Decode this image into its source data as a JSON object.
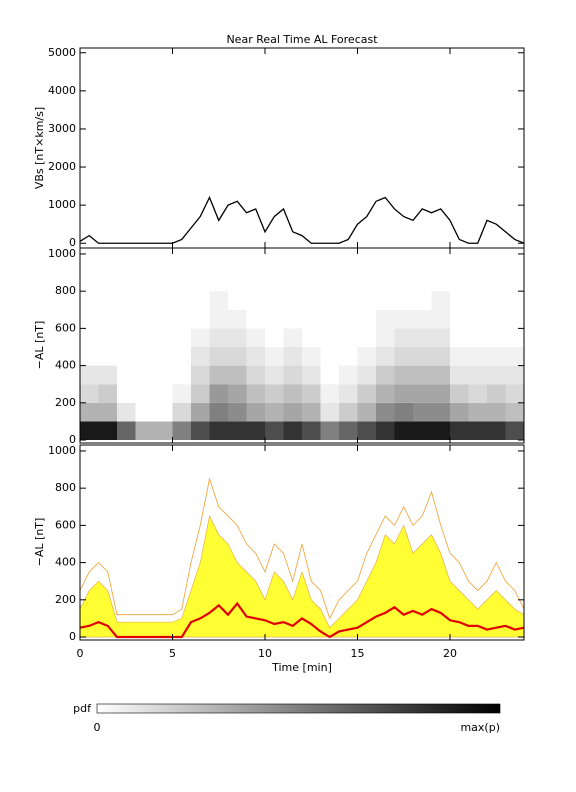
{
  "chart_data": [
    {
      "type": "line",
      "title": "Near Real Time AL Forecast",
      "ylabel": "VBs [nT×km/s]",
      "x": [
        0,
        0.5,
        1,
        1.5,
        2,
        2.5,
        3,
        3.5,
        4,
        4.5,
        5,
        5.5,
        6,
        6.5,
        7,
        7.5,
        8,
        8.5,
        9,
        9.5,
        10,
        10.5,
        11,
        11.5,
        12,
        12.5,
        13,
        13.5,
        14,
        14.5,
        15,
        15.5,
        16,
        16.5,
        17,
        17.5,
        18,
        18.5,
        19,
        19.5,
        20,
        20.5,
        21,
        21.5,
        22,
        22.5,
        23,
        23.5,
        24
      ],
      "values": [
        50,
        200,
        0,
        0,
        0,
        0,
        0,
        0,
        0,
        0,
        0,
        100,
        400,
        700,
        1200,
        600,
        1000,
        1100,
        800,
        900,
        300,
        700,
        900,
        300,
        200,
        0,
        0,
        0,
        0,
        100,
        500,
        700,
        1100,
        1200,
        900,
        700,
        600,
        900,
        800,
        900,
        600,
        100,
        0,
        0,
        600,
        500,
        300,
        100,
        0
      ],
      "color": "#000000",
      "xlim": [
        0,
        24
      ],
      "xticks": [
        0,
        5,
        10,
        15,
        20
      ],
      "show_xtick_labels": false,
      "ylim": [
        -125,
        5125
      ],
      "yticks": [
        0,
        1000,
        2000,
        3000,
        4000,
        5000
      ]
    },
    {
      "type": "heatmap",
      "ylabel": "−AL [nT]",
      "x_bins": [
        0,
        1,
        2,
        3,
        4,
        5,
        6,
        7,
        8,
        9,
        10,
        11,
        12,
        13,
        14,
        15,
        16,
        17,
        18,
        19,
        20,
        21,
        22,
        23,
        24
      ],
      "y_bins": [
        0,
        100,
        200,
        300,
        400,
        500,
        600,
        700,
        800,
        900
      ],
      "values": [
        [
          0.9,
          0.3,
          0.15,
          0.1,
          0,
          0,
          0,
          0,
          0
        ],
        [
          0.9,
          0.3,
          0.2,
          0.1,
          0,
          0,
          0,
          0,
          0
        ],
        [
          0.6,
          0.1,
          0,
          0,
          0,
          0,
          0,
          0,
          0
        ],
        [
          0.3,
          0,
          0,
          0,
          0,
          0,
          0,
          0,
          0
        ],
        [
          0.3,
          0,
          0,
          0,
          0,
          0,
          0,
          0,
          0
        ],
        [
          0.5,
          0.15,
          0.05,
          0,
          0,
          0,
          0,
          0,
          0
        ],
        [
          0.7,
          0.35,
          0.2,
          0.15,
          0.1,
          0.05,
          0,
          0,
          0
        ],
        [
          0.8,
          0.5,
          0.4,
          0.25,
          0.15,
          0.1,
          0.05,
          0.05,
          0
        ],
        [
          0.8,
          0.45,
          0.35,
          0.25,
          0.15,
          0.1,
          0.05,
          0,
          0
        ],
        [
          0.8,
          0.35,
          0.25,
          0.15,
          0.1,
          0.05,
          0,
          0,
          0
        ],
        [
          0.7,
          0.3,
          0.2,
          0.1,
          0.05,
          0,
          0,
          0,
          0
        ],
        [
          0.8,
          0.35,
          0.25,
          0.15,
          0.1,
          0.05,
          0,
          0,
          0
        ],
        [
          0.7,
          0.3,
          0.2,
          0.1,
          0.05,
          0,
          0,
          0,
          0
        ],
        [
          0.5,
          0.1,
          0.05,
          0,
          0,
          0,
          0,
          0,
          0
        ],
        [
          0.6,
          0.2,
          0.1,
          0.05,
          0,
          0,
          0,
          0,
          0
        ],
        [
          0.7,
          0.3,
          0.2,
          0.1,
          0.05,
          0,
          0,
          0,
          0
        ],
        [
          0.8,
          0.45,
          0.3,
          0.2,
          0.1,
          0.05,
          0.05,
          0,
          0
        ],
        [
          0.9,
          0.5,
          0.35,
          0.25,
          0.15,
          0.1,
          0.05,
          0,
          0
        ],
        [
          0.9,
          0.45,
          0.35,
          0.25,
          0.15,
          0.1,
          0.05,
          0,
          0
        ],
        [
          0.9,
          0.45,
          0.35,
          0.25,
          0.15,
          0.1,
          0.05,
          0.05,
          0
        ],
        [
          0.8,
          0.35,
          0.2,
          0.1,
          0.05,
          0,
          0,
          0,
          0
        ],
        [
          0.8,
          0.3,
          0.15,
          0.1,
          0.05,
          0,
          0,
          0,
          0
        ],
        [
          0.8,
          0.3,
          0.2,
          0.1,
          0.05,
          0,
          0,
          0,
          0
        ],
        [
          0.7,
          0.25,
          0.15,
          0.1,
          0.05,
          0,
          0,
          0,
          0
        ]
      ],
      "xlim": [
        0,
        24
      ],
      "xticks": [
        0,
        5,
        10,
        15,
        20
      ],
      "show_xtick_labels": false,
      "ylim": [
        -16,
        1032
      ],
      "yticks": [
        0,
        200,
        400,
        600,
        800,
        1000
      ]
    },
    {
      "type": "line",
      "ylabel": "−AL [nT]",
      "xlabel": "Time [min]",
      "x": [
        0,
        0.5,
        1,
        1.5,
        2,
        2.5,
        3,
        3.5,
        4,
        4.5,
        5,
        5.5,
        6,
        6.5,
        7,
        7.5,
        8,
        8.5,
        9,
        9.5,
        10,
        10.5,
        11,
        11.5,
        12,
        12.5,
        13,
        13.5,
        14,
        14.5,
        15,
        15.5,
        16,
        16.5,
        17,
        17.5,
        18,
        18.5,
        19,
        19.5,
        20,
        20.5,
        21,
        21.5,
        22,
        22.5,
        23,
        23.5,
        24
      ],
      "series": [
        {
          "style": "area",
          "color": "#ffff33",
          "values": [
            150,
            250,
            300,
            250,
            80,
            80,
            80,
            80,
            80,
            80,
            80,
            100,
            250,
            400,
            650,
            550,
            500,
            400,
            350,
            300,
            200,
            350,
            300,
            200,
            350,
            200,
            150,
            50,
            100,
            150,
            200,
            300,
            400,
            550,
            500,
            600,
            450,
            500,
            550,
            450,
            300,
            250,
            200,
            150,
            200,
            250,
            200,
            150,
            120
          ]
        },
        {
          "style": "line",
          "color": "#f0a030",
          "values": [
            250,
            350,
            400,
            350,
            120,
            120,
            120,
            120,
            120,
            120,
            120,
            150,
            400,
            600,
            850,
            700,
            650,
            600,
            500,
            450,
            350,
            500,
            450,
            300,
            500,
            300,
            250,
            100,
            200,
            250,
            300,
            450,
            550,
            650,
            600,
            700,
            600,
            650,
            780,
            600,
            450,
            400,
            300,
            250,
            300,
            400,
            300,
            250,
            150
          ]
        },
        {
          "style": "line",
          "color": "#e00000",
          "values": [
            50,
            60,
            80,
            60,
            0,
            0,
            0,
            0,
            0,
            0,
            0,
            0,
            80,
            100,
            130,
            170,
            120,
            180,
            110,
            100,
            90,
            70,
            80,
            60,
            100,
            70,
            30,
            0,
            30,
            40,
            50,
            80,
            110,
            130,
            160,
            120,
            140,
            120,
            150,
            130,
            90,
            80,
            60,
            60,
            40,
            50,
            60,
            40,
            50
          ]
        }
      ],
      "xlim": [
        0,
        24
      ],
      "xticks": [
        0,
        5,
        10,
        15,
        20
      ],
      "show_xtick_labels": true,
      "ylim": [
        -16,
        1032
      ],
      "yticks": [
        0,
        200,
        400,
        600,
        800,
        1000
      ]
    }
  ],
  "colorbar": {
    "label": "pdf",
    "min_label": "0",
    "max_label": "max(p)"
  }
}
